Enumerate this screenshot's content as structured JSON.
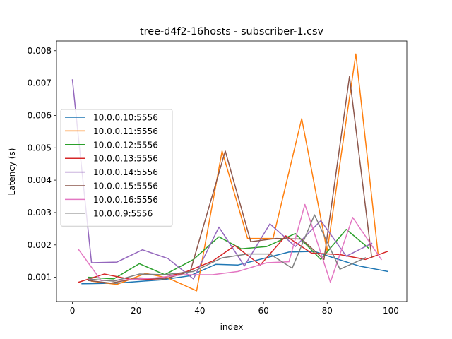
{
  "chart_data": {
    "type": "line",
    "title": "tree-d4f2-16hosts - subscriber-1.csv",
    "xlabel": "index",
    "ylabel": "Latency (s)",
    "xlim": [
      -5,
      105
    ],
    "ylim": [
      0.00025,
      0.0083
    ],
    "x_ticks": [
      0,
      20,
      40,
      60,
      80,
      100
    ],
    "x_tick_labels": [
      "0",
      "20",
      "40",
      "60",
      "80",
      "100"
    ],
    "y_ticks": [
      0.001,
      0.002,
      0.003,
      0.004,
      0.005,
      0.006,
      0.007,
      0.008
    ],
    "y_tick_labels": [
      "0.001",
      "0.002",
      "0.003",
      "0.004",
      "0.005",
      "0.006",
      "0.007",
      "0.008"
    ],
    "grid": false,
    "legend_position": "center-left",
    "series": [
      {
        "name": "10.0.0.10:5556",
        "color": "#1f77b4",
        "x": [
          3,
          14,
          22,
          28,
          37,
          45,
          52,
          60,
          68,
          76,
          82,
          90,
          99
        ],
        "y": [
          0.0008,
          0.00082,
          0.00088,
          0.00092,
          0.00105,
          0.0014,
          0.00138,
          0.00158,
          0.00178,
          0.0018,
          0.0016,
          0.00135,
          0.00118
        ]
      },
      {
        "name": "10.0.0.11:5556",
        "color": "#ff7f0e",
        "x": [
          6,
          14,
          23,
          30,
          39,
          47,
          55,
          63,
          72,
          80,
          89,
          96
        ],
        "y": [
          0.00088,
          0.00078,
          0.00112,
          0.00098,
          0.00058,
          0.0049,
          0.0022,
          0.0022,
          0.0059,
          0.0018,
          0.0079,
          0.0017
        ]
      },
      {
        "name": "10.0.0.12:5556",
        "color": "#2ca02c",
        "x": [
          5,
          13,
          21,
          29,
          38,
          46,
          53,
          61,
          70,
          78,
          86,
          93
        ],
        "y": [
          0.001,
          0.00095,
          0.00142,
          0.00108,
          0.00155,
          0.00225,
          0.00188,
          0.00195,
          0.00235,
          0.00155,
          0.00248,
          0.0019
        ]
      },
      {
        "name": "10.0.0.13:5556",
        "color": "#d62728",
        "x": [
          2,
          10,
          19,
          27,
          36,
          44,
          51,
          59,
          67,
          75,
          84,
          92,
          99
        ],
        "y": [
          0.00085,
          0.0011,
          0.00092,
          0.00095,
          0.00118,
          0.0015,
          0.00198,
          0.00138,
          0.00228,
          0.00175,
          0.0017,
          0.00155,
          0.0018
        ]
      },
      {
        "name": "10.0.0.14:5556",
        "color": "#9467bd",
        "x": [
          0,
          6,
          14,
          22,
          30,
          38,
          46,
          54,
          62,
          70,
          78,
          86,
          94
        ],
        "y": [
          0.0071,
          0.00145,
          0.00147,
          0.00185,
          0.00158,
          0.00095,
          0.00255,
          0.00135,
          0.00265,
          0.00195,
          0.00275,
          0.00165,
          0.00205
        ]
      },
      {
        "name": "10.0.0.15:5556",
        "color": "#8c564b",
        "x": [
          5,
          12,
          21,
          29,
          37,
          48,
          56,
          64,
          72,
          79,
          87,
          94
        ],
        "y": [
          0.0009,
          0.00082,
          0.00098,
          0.00095,
          0.00118,
          0.0049,
          0.0021,
          0.0022,
          0.00218,
          0.00155,
          0.0072,
          0.0016
        ]
      },
      {
        "name": "10.0.0.16:5556",
        "color": "#e377c2",
        "x": [
          2,
          9,
          17,
          26,
          35,
          44,
          52,
          61,
          68,
          73,
          81,
          88,
          97
        ],
        "y": [
          0.00185,
          0.0009,
          0.00092,
          0.00098,
          0.00108,
          0.00108,
          0.00118,
          0.00145,
          0.00148,
          0.00325,
          0.00085,
          0.00285,
          0.00155
        ]
      },
      {
        "name": "10.0.0.9:5556",
        "color": "#7f7f7f",
        "x": [
          5,
          13,
          21,
          29,
          38,
          47,
          55,
          62,
          69,
          76,
          84,
          92
        ],
        "y": [
          0.00095,
          0.00088,
          0.0011,
          0.00108,
          0.00118,
          0.0016,
          0.00172,
          0.00172,
          0.00128,
          0.00293,
          0.00125,
          0.0016
        ]
      }
    ]
  }
}
